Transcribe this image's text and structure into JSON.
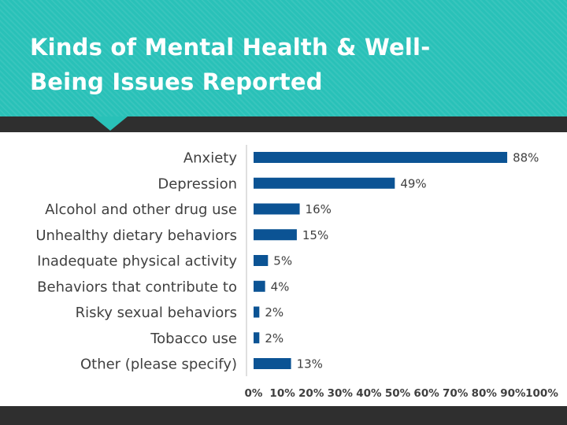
{
  "slide": {
    "title": "Kinds of Mental Health & Well-Being Issues Reported"
  },
  "colors": {
    "teal": "#29c1b8",
    "dark_band": "#2f2f2f",
    "bar": "#0b5394",
    "text": "#404040"
  },
  "chart_data": {
    "type": "bar",
    "orientation": "horizontal",
    "title": "",
    "xlabel": "",
    "ylabel": "",
    "categories": [
      "Anxiety",
      "Depression",
      "Alcohol and other drug use",
      "Unhealthy dietary behaviors",
      "Inadequate physical activity",
      "Behaviors that contribute to",
      "Risky sexual behaviors",
      "Tobacco use",
      "Other (please specify)"
    ],
    "values": [
      88,
      49,
      16,
      15,
      5,
      4,
      2,
      2,
      13
    ],
    "data_labels": [
      "88%",
      "49%",
      "16%",
      "15%",
      "5%",
      "4%",
      "2%",
      "2%",
      "13%"
    ],
    "x_ticks": [
      0,
      10,
      20,
      30,
      40,
      50,
      60,
      70,
      80,
      90,
      100
    ],
    "x_tick_labels": [
      "0%",
      "10%",
      "20%",
      "30%",
      "40%",
      "50%",
      "60%",
      "70%",
      "80%",
      "90%",
      "100%"
    ],
    "xlim": [
      0,
      100
    ],
    "grid": false,
    "legend": "none"
  }
}
